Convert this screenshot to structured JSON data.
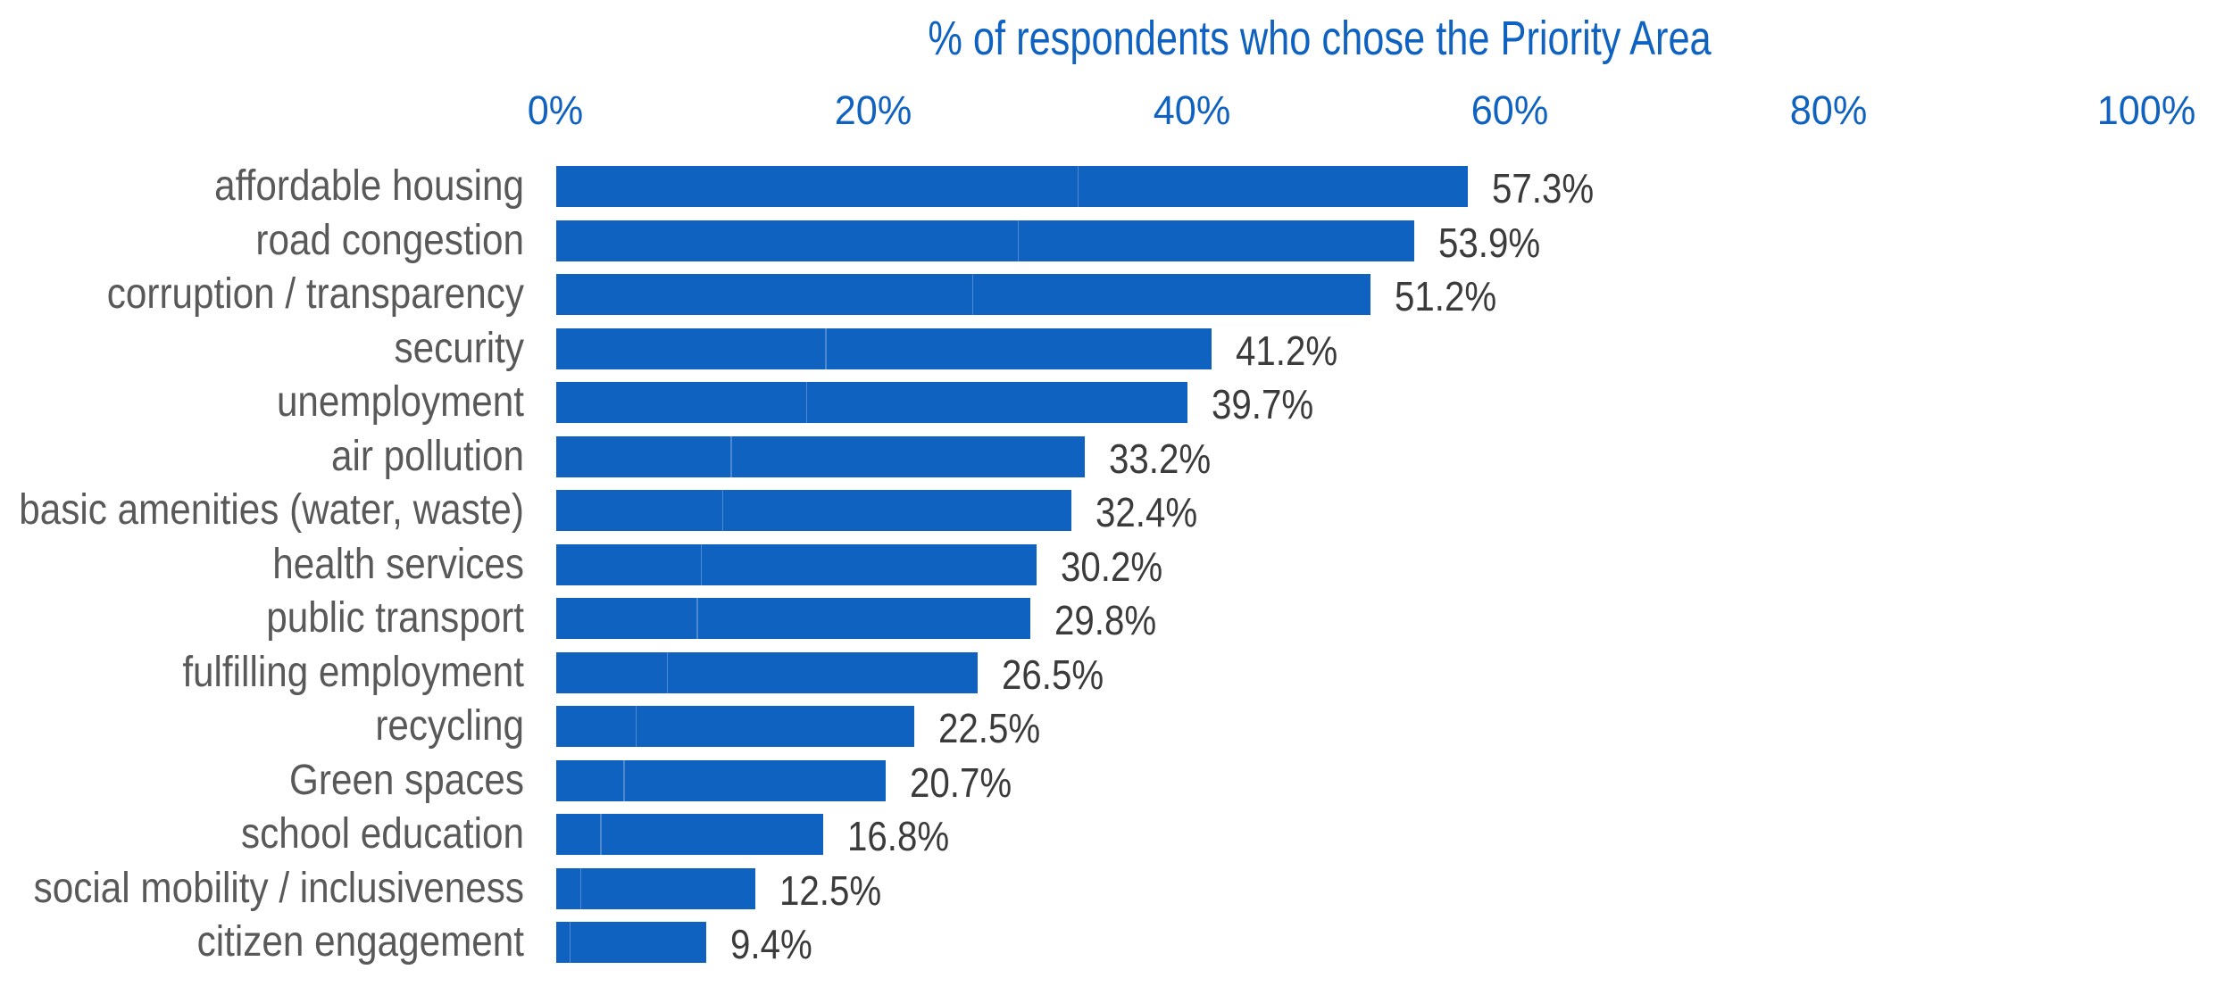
{
  "chart_data": {
    "type": "bar",
    "orientation": "horizontal",
    "title": "% of respondents who chose the Priority Area",
    "categories": [
      "affordable housing",
      "road congestion",
      "corruption / transparency",
      "security",
      "unemployment",
      "air pollution",
      "basic amenities (water, waste)",
      "health services",
      "public transport",
      "fulfilling employment",
      "recycling",
      "Green spaces",
      "school education",
      "social mobility / inclusiveness",
      "citizen engagement"
    ],
    "values": [
      57.3,
      53.9,
      51.2,
      41.2,
      39.7,
      33.2,
      32.4,
      30.2,
      29.8,
      26.5,
      22.5,
      20.7,
      16.8,
      12.5,
      9.4
    ],
    "value_labels": [
      "57.3%",
      "53.9%",
      "51.2%",
      "41.2%",
      "39.7%",
      "33.2%",
      "32.4%",
      "30.2%",
      "29.8%",
      "26.5%",
      "22.5%",
      "20.7%",
      "16.8%",
      "12.5%",
      "9.4%"
    ],
    "xlabel": "",
    "ylabel": "",
    "xlim": [
      0,
      100
    ],
    "x_ticks": [
      {
        "value": 0,
        "label": "0%"
      },
      {
        "value": 20,
        "label": "20%"
      },
      {
        "value": 40,
        "label": "40%"
      },
      {
        "value": 60,
        "label": "60%"
      },
      {
        "value": 80,
        "label": "80%"
      },
      {
        "value": 100,
        "label": "100%"
      }
    ],
    "grid": false,
    "legend": false
  },
  "style": {
    "bar_color": "#1062C1",
    "title_color": "#1062C1",
    "axis_text_color": "#1062C1",
    "category_text_color": "#595959",
    "value_text_color": "#3B3B3B",
    "background": "#FFFFFF"
  }
}
